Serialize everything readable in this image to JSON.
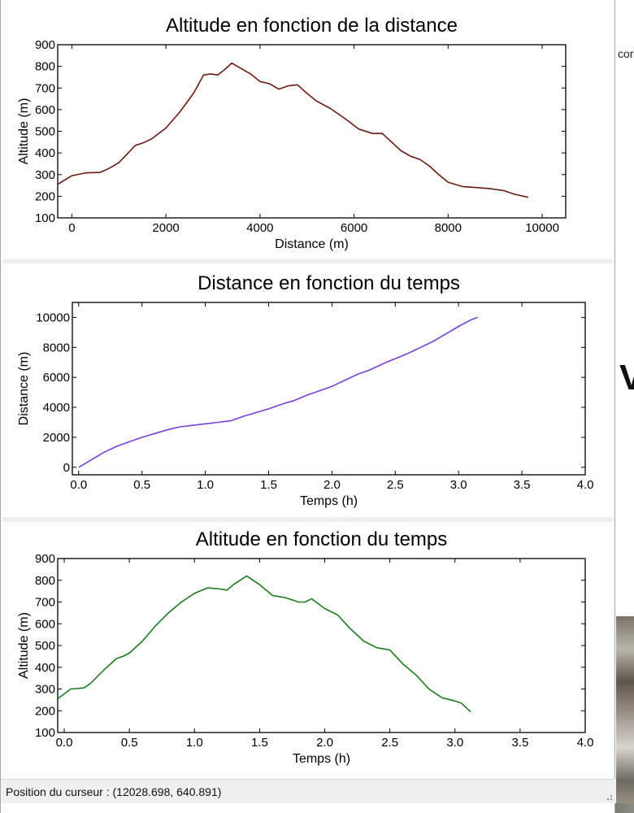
{
  "background": {
    "fragment_text": "cor",
    "fragment_glyph": "V"
  },
  "status_bar": {
    "text": "Position du curseur : (12028.698, 640.891)"
  },
  "colors": {
    "altitude_distance_line": "#6b1a10",
    "distance_time_line": "#7b3fd6",
    "altitude_time_line": "#1e7a1e"
  },
  "chart_data": [
    {
      "type": "line",
      "title": "Altitude en fonction de la distance",
      "xlabel": "Distance (m)",
      "ylabel": "Altitude (m)",
      "xlim": [
        -300,
        10500
      ],
      "ylim": [
        100,
        900
      ],
      "xticks": [
        "0",
        "2000",
        "4000",
        "6000",
        "8000",
        "10000"
      ],
      "yticks": [
        "100",
        "200",
        "300",
        "400",
        "500",
        "600",
        "700",
        "800",
        "900"
      ],
      "grid": false,
      "series": [
        {
          "color": "#6b1a10",
          "x": [
            -300,
            0,
            300,
            600,
            800,
            1000,
            1200,
            1350,
            1500,
            1700,
            2000,
            2300,
            2600,
            2800,
            2950,
            3100,
            3250,
            3400,
            3600,
            3800,
            4000,
            4200,
            4400,
            4600,
            4800,
            5000,
            5200,
            5500,
            5800,
            6100,
            6400,
            6600,
            6800,
            7000,
            7200,
            7400,
            7600,
            7800,
            8000,
            8300,
            8600,
            8900,
            9200,
            9400,
            9700
          ],
          "y": [
            255,
            295,
            308,
            310,
            330,
            355,
            400,
            435,
            445,
            465,
            515,
            590,
            680,
            760,
            765,
            760,
            785,
            815,
            790,
            765,
            730,
            720,
            695,
            710,
            715,
            675,
            640,
            605,
            560,
            510,
            490,
            490,
            450,
            410,
            385,
            370,
            340,
            300,
            265,
            245,
            240,
            235,
            225,
            210,
            195
          ]
        }
      ]
    },
    {
      "type": "line",
      "title": "Distance en fonction du temps",
      "xlabel": "Temps (h)",
      "ylabel": "Distance (m)",
      "xlim": [
        -0.05,
        4.0
      ],
      "ylim": [
        -500,
        11000
      ],
      "xticks": [
        "0.0",
        "0.5",
        "1.0",
        "1.5",
        "2.0",
        "2.5",
        "3.0",
        "3.5",
        "4.0"
      ],
      "yticks": [
        "0",
        "2000",
        "4000",
        "6000",
        "8000",
        "10000"
      ],
      "grid": false,
      "series": [
        {
          "color": "#7b3fd6",
          "x": [
            0,
            0.1,
            0.2,
            0.3,
            0.4,
            0.5,
            0.6,
            0.7,
            0.8,
            0.9,
            1.0,
            1.1,
            1.2,
            1.3,
            1.4,
            1.5,
            1.6,
            1.7,
            1.8,
            1.9,
            2.0,
            2.1,
            2.2,
            2.3,
            2.4,
            2.5,
            2.6,
            2.7,
            2.8,
            2.9,
            3.0,
            3.1,
            3.15
          ],
          "y": [
            0,
            500,
            1000,
            1400,
            1700,
            2000,
            2250,
            2500,
            2700,
            2800,
            2900,
            3000,
            3100,
            3400,
            3650,
            3900,
            4200,
            4450,
            4800,
            5100,
            5400,
            5800,
            6200,
            6500,
            6900,
            7250,
            7600,
            8000,
            8400,
            8900,
            9400,
            9850,
            10000
          ]
        }
      ]
    },
    {
      "type": "line",
      "title": "Altitude en fonction du temps",
      "xlabel": "Temps (h)",
      "ylabel": "Altitude (m)",
      "xlim": [
        -0.05,
        4.0
      ],
      "ylim": [
        100,
        900
      ],
      "xticks": [
        "0.0",
        "0.5",
        "1.0",
        "1.5",
        "2.0",
        "2.5",
        "3.0",
        "3.5",
        "4.0"
      ],
      "yticks": [
        "100",
        "200",
        "300",
        "400",
        "500",
        "600",
        "700",
        "800",
        "900"
      ],
      "grid": false,
      "series": [
        {
          "color": "#1e7a1e",
          "x": [
            -0.05,
            0.05,
            0.15,
            0.2,
            0.3,
            0.4,
            0.45,
            0.5,
            0.6,
            0.7,
            0.8,
            0.9,
            1.0,
            1.1,
            1.2,
            1.25,
            1.3,
            1.35,
            1.4,
            1.5,
            1.6,
            1.7,
            1.8,
            1.85,
            1.9,
            2.0,
            2.1,
            2.2,
            2.3,
            2.4,
            2.5,
            2.6,
            2.7,
            2.8,
            2.9,
            3.0,
            3.05,
            3.12
          ],
          "y": [
            255,
            300,
            305,
            325,
            385,
            440,
            450,
            465,
            520,
            590,
            650,
            700,
            740,
            765,
            760,
            755,
            780,
            800,
            820,
            780,
            730,
            720,
            700,
            700,
            715,
            670,
            640,
            575,
            520,
            490,
            480,
            415,
            365,
            300,
            260,
            245,
            235,
            195
          ]
        }
      ]
    }
  ]
}
